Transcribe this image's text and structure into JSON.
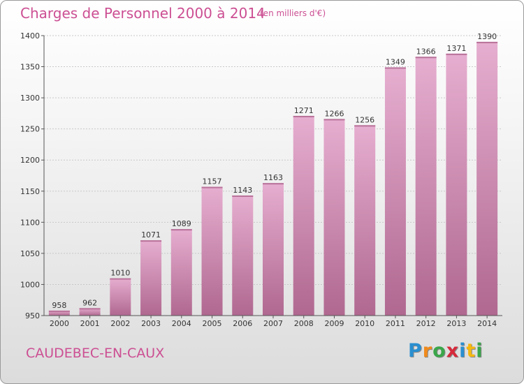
{
  "header": {
    "title": "Charges de Personnel 2000 à 2014",
    "subtitle": "(en milliers d'€)"
  },
  "footer": {
    "city": "CAUDEBEC-EN-CAUX",
    "logo_letters": [
      "P",
      "r",
      "o",
      "x",
      "i",
      "t",
      "i"
    ],
    "logo_colors": [
      "#2a8fd0",
      "#f08a1c",
      "#3aa64a",
      "#d62a3b",
      "#2a8fd0",
      "#f5b80f",
      "#3aa64a"
    ]
  },
  "chart_data": {
    "type": "bar",
    "title": "Charges de Personnel 2000 à 2014",
    "subtitle": "(en milliers d'€)",
    "categories": [
      "2000",
      "2001",
      "2002",
      "2003",
      "2004",
      "2005",
      "2006",
      "2007",
      "2008",
      "2009",
      "2010",
      "2011",
      "2012",
      "2013",
      "2014"
    ],
    "values": [
      958,
      962,
      1010,
      1071,
      1089,
      1157,
      1143,
      1163,
      1271,
      1266,
      1256,
      1349,
      1366,
      1371,
      1390
    ],
    "ylim": [
      950,
      1400
    ],
    "yticks": [
      950,
      1000,
      1050,
      1100,
      1150,
      1200,
      1250,
      1300,
      1350,
      1400
    ],
    "grid": true,
    "xlabel": "",
    "ylabel": "",
    "bar_color": "#e0a3c6",
    "bar_color_dark": "#b4688f"
  }
}
